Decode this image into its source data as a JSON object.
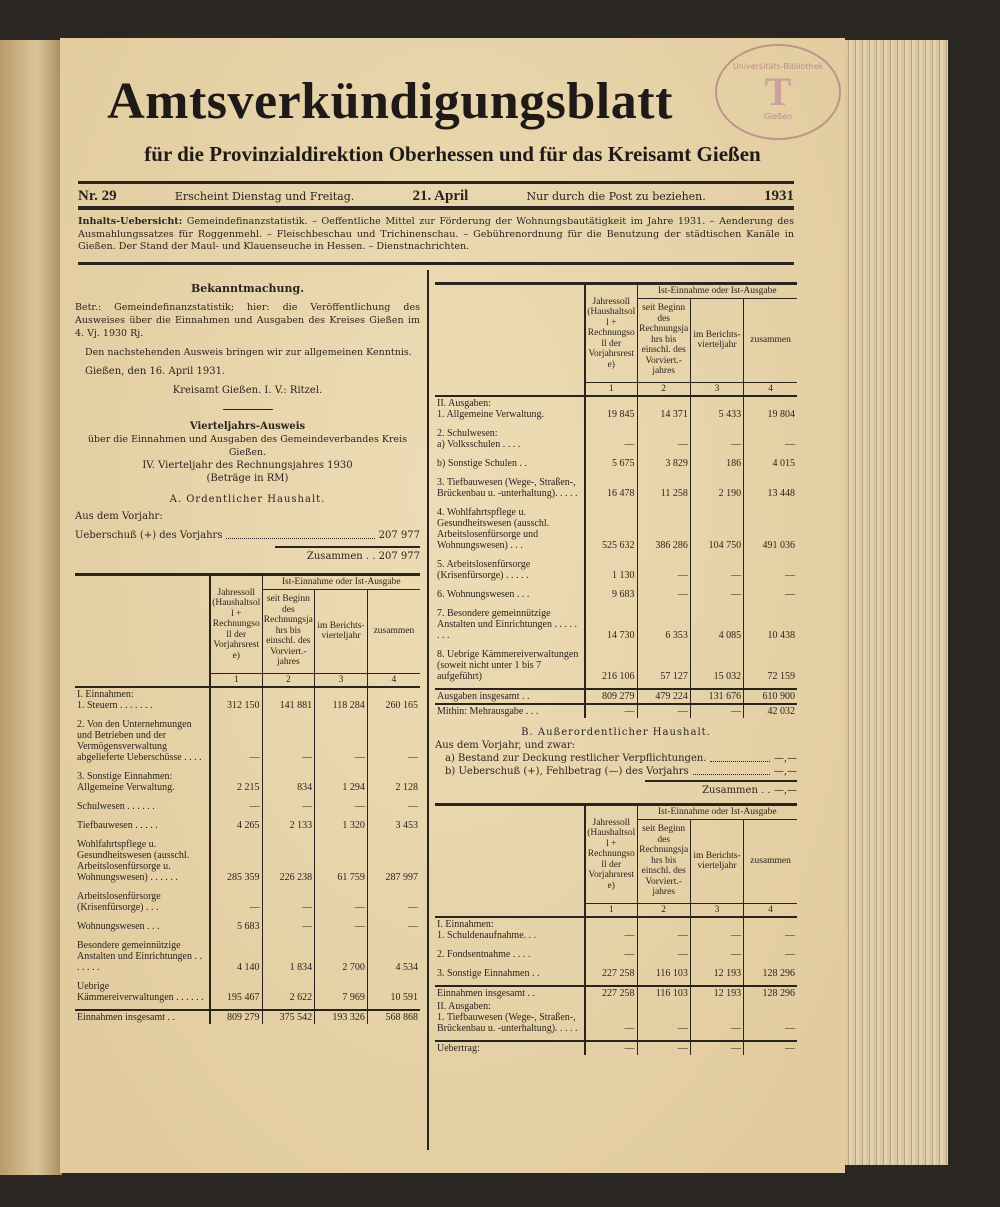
{
  "masthead": {
    "title": "Amtsverkündigungsblatt",
    "subtitle": "für die Provinzialdirektion Oberhessen und für das Kreisamt Gießen",
    "stamp": {
      "top": "Universitäts-Bibliothek",
      "bottom": "Gießen"
    }
  },
  "issue": {
    "number": "Nr. 29",
    "schedule": "Erscheint Dienstag und Freitag.",
    "date": "21. April",
    "delivery": "Nur durch die Post zu beziehen.",
    "year": "1931"
  },
  "contents": {
    "label": "Inhalts-Uebersicht:",
    "text": "Gemeindefinanzstatistik. – Oeffentliche Mittel zur Förderung der Wohnungsbautätigkeit im Jahre 1931. – Aenderung des Ausmahlungssatzes für Roggenmehl. – Fleischbeschau und Trichinenschau. – Gebührenordnung für die Benutzung der städtischen Kanäle in Gießen. Der Stand der Maul- und Klauenseuche in Hessen. – Dienstnachrichten."
  },
  "notice": {
    "heading": "Bekanntmachung.",
    "betr": "Betr.: Gemeindefinanzstatistik; hier: die Veröffentlichung des Ausweises über die Einnahmen und Ausgaben des Kreises Gießen im 4. Vj. 1930 Rj.",
    "body": "Den nachstehenden Ausweis bringen wir zur allgemeinen Kenntnis.",
    "place_date": "Gießen, den 16. April 1931.",
    "signature": "Kreisamt Gießen. I. V.: Ritzel."
  },
  "report": {
    "heading": "Vierteljahrs-Ausweis",
    "sub1": "über die Einnahmen und Ausgaben des Gemeindeverbandes Kreis Gießen.",
    "sub2": "IV. Vierteljahr des Rechnungsjahres 1930",
    "sub3": "(Beträge in RM)",
    "sectionA": "A. Ordentlicher Haushalt.",
    "prev_year": "Aus dem Vorjahr:",
    "surplus_label": "Ueberschuß (+) des Vorjahrs",
    "surplus_value": "207 977",
    "total_label": "Zusammen . .",
    "total_value": "207 977",
    "sectionB": "B. Außerordentlicher Haushalt.",
    "b_intro": "Aus dem Vorjahr, und zwar:",
    "b_a_label": "a) Bestand zur Deckung restlicher Verpflichtungen.",
    "b_a_value": "—,—",
    "b_b_label": "b) Ueberschuß (+), Fehlbetrag (—) des Vorjahrs",
    "b_b_value": "—,—",
    "b_total_label": "Zusammen . .",
    "b_total_value": "—,—"
  },
  "table_header": {
    "col1": "Jahressoll (Haushaltsoll + Rechnungsoll der Vorjahrsreste)",
    "group": "Ist-Einnahme oder Ist-Ausgabe",
    "col2": "seit Beginn des Rechnungsjahrs bis einschl. des Vorviert.-jahres",
    "col3": "im Berichts-vierteljahr",
    "col4": "zusammen",
    "nums": [
      "1",
      "2",
      "3",
      "4"
    ]
  },
  "table_a_income": [
    {
      "label": "I. Einnahmen:\n  1. Steuern . . . . . . .",
      "v": [
        "312 150",
        "141 881",
        "118 284",
        "260 165"
      ]
    },
    {
      "label": "  2. Von den Unternehmungen und Betrieben und der Vermögensverwaltung abgelieferte Ueberschüsse . . . .",
      "v": [
        "—",
        "—",
        "—",
        "—"
      ]
    },
    {
      "label": "  3. Sonstige Einnahmen:\n  Allgemeine Verwaltung.",
      "v": [
        "2 215",
        "834",
        "1 294",
        "2 128"
      ]
    },
    {
      "label": "  Schulwesen . . . . . .",
      "v": [
        "—",
        "—",
        "—",
        "—"
      ]
    },
    {
      "label": "  Tiefbauwesen . . . . .",
      "v": [
        "4 265",
        "2 133",
        "1 320",
        "3 453"
      ]
    },
    {
      "label": "  Wohlfahrtspflege u. Gesundheitswesen (ausschl. Arbeitslosenfürsorge u. Wohnungswesen) . . . . . .",
      "v": [
        "285 359",
        "226 238",
        "61 759",
        "287 997"
      ]
    },
    {
      "label": "  Arbeitslosenfürsorge (Krisenfürsorge) . . .",
      "v": [
        "—",
        "—",
        "—",
        "—"
      ]
    },
    {
      "label": "  Wohnungswesen . . .",
      "v": [
        "5 683",
        "—",
        "—",
        "—"
      ]
    },
    {
      "label": "  Besondere gemeinnützige Anstalten und Einrichtungen . . . . . . .",
      "v": [
        "4 140",
        "1 834",
        "2 700",
        "4 534"
      ]
    },
    {
      "label": "  Uebrige Kämmereiverwaltungen . . . . . .",
      "v": [
        "195 467",
        "2 622",
        "7 969",
        "10 591"
      ]
    },
    {
      "label": "Einnahmen insgesamt . .",
      "v": [
        "809 279",
        "375 542",
        "193 326",
        "568 868"
      ],
      "sum": true
    }
  ],
  "table_a_expenses": [
    {
      "label": "II. Ausgaben:\n  1. Allgemeine Verwaltung.",
      "v": [
        "19 845",
        "14 371",
        "5 433",
        "19 804"
      ]
    },
    {
      "label": "  2. Schulwesen:\n  a) Volksschulen . . . .",
      "v": [
        "—",
        "—",
        "—",
        "—"
      ]
    },
    {
      "label": "  b) Sonstige Schulen . .",
      "v": [
        "5 675",
        "3 829",
        "186",
        "4 015"
      ]
    },
    {
      "label": "  3. Tiefbauwesen (Wege-, Straßen-, Brückenbau u. -unterhaltung). . . . .",
      "v": [
        "16 478",
        "11 258",
        "2 190",
        "13 448"
      ]
    },
    {
      "label": "  4. Wohlfahrtspflege u. Gesundheitswesen (ausschl. Arbeitslosenfürsorge und Wohnungswesen) . . .",
      "v": [
        "525 632",
        "386 286",
        "104 750",
        "491 036"
      ]
    },
    {
      "label": "  5. Arbeitslosenfürsorge (Krisenfürsorge) . . . . .",
      "v": [
        "1 130",
        "—",
        "—",
        "—"
      ]
    },
    {
      "label": "  6. Wohnungswesen . . .",
      "v": [
        "9 683",
        "—",
        "—",
        "—"
      ]
    },
    {
      "label": "  7. Besondere gemeinnützige Anstalten und Einrichtungen . . . . . . . .",
      "v": [
        "14 730",
        "6 353",
        "4 085",
        "10 438"
      ]
    },
    {
      "label": "  8. Uebrige Kämmereiverwaltungen (soweit nicht unter 1 bis 7 aufgeführt)",
      "v": [
        "216 106",
        "57 127",
        "15 032",
        "72 159"
      ]
    },
    {
      "label": "Ausgaben insgesamt . .",
      "v": [
        "809 279",
        "479 224",
        "131 676",
        "610 900"
      ],
      "sum": true
    },
    {
      "label": "Mithin: Mehrausgabe . . .",
      "v": [
        "—",
        "—",
        "—",
        "42 032"
      ],
      "sum": true
    }
  ],
  "table_b": [
    {
      "label": "I. Einnahmen:\n  1. Schuldenaufnahme. . .",
      "v": [
        "—",
        "—",
        "—",
        "—"
      ]
    },
    {
      "label": "  2. Fondsentnahme . . . .",
      "v": [
        "—",
        "—",
        "—",
        "—"
      ]
    },
    {
      "label": "  3. Sonstige Einnahmen . .",
      "v": [
        "227 258",
        "116 103",
        "12 193",
        "128 296"
      ]
    },
    {
      "label": "Einnahmen insgesamt . .",
      "v": [
        "227 258",
        "116 103",
        "12 193",
        "128 296"
      ],
      "sum": true
    },
    {
      "label": "II. Ausgaben:\n  1. Tiefbauwesen (Wege-, Straßen-, Brückenbau u. -unterhaltung). . . . .",
      "v": [
        "—",
        "—",
        "—",
        "—"
      ]
    },
    {
      "label": "Uebertrag:",
      "v": [
        "—",
        "—",
        "—",
        "—"
      ],
      "sum": true
    }
  ]
}
